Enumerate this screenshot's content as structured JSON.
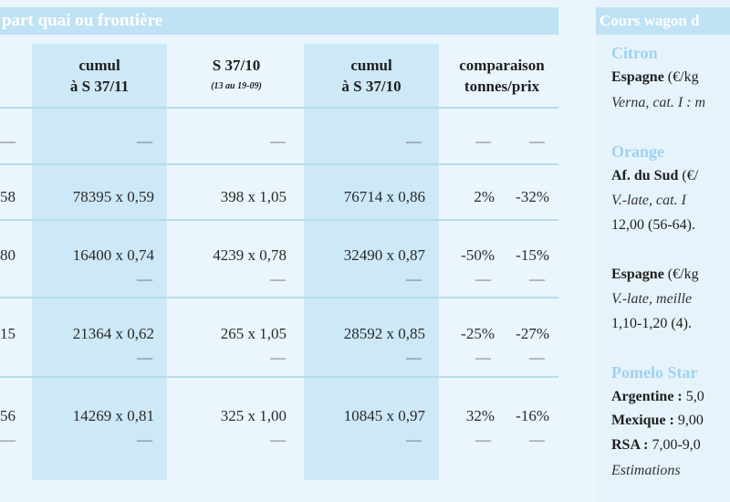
{
  "left_table": {
    "title": "part quai ou frontière",
    "headers": {
      "col0_fragment": "",
      "col1_line1": "cumul",
      "col1_line2": "à S 37/11",
      "col2_line1": "S 37/10",
      "col2_sub": "(13 au 19-09)",
      "col3_line1": "cumul",
      "col3_line2": "à S 37/10",
      "col4_line1": "comparaison",
      "col4_line2": "tonnes/prix"
    },
    "rows": [
      {
        "c0": "—",
        "c1": "—",
        "c2": "—",
        "c3": "—",
        "c4a": "—",
        "c4b": "—",
        "has_dash_line": false
      },
      {
        "c0": "58",
        "c1": "78395 x 0,59",
        "c2": "398 x 1,05",
        "c3": "76714 x 0,86",
        "c4a": "2%",
        "c4b": "-32%",
        "has_dash_line": false
      },
      {
        "c0": "80",
        "c1": "16400 x 0,74",
        "c2": "4239 x 0,78",
        "c3": "32490 x 0,87",
        "c4a": "-50%",
        "c4b": "-15%",
        "has_dash_line": true
      },
      {
        "c0": "15",
        "c1": "21364 x 0,62",
        "c2": "265 x 1,05",
        "c3": "28592 x 0,85",
        "c4a": "-25%",
        "c4b": "-27%",
        "has_dash_line": true
      },
      {
        "c0": "56",
        "c1": "14269 x 0,81",
        "c2": "325 x 1,00",
        "c3": "10845 x 0,97",
        "c4a": "32%",
        "c4b": "-16%",
        "has_dash_line": true
      }
    ]
  },
  "right_panel": {
    "title": "Cours wagon d",
    "citron_head": "Citron",
    "citron_line1_bold": "Espagne",
    "citron_line1_rest": " (€/kg",
    "citron_line2": "Verna, cat. I : m",
    "orange_head": "Orange",
    "orange_line1_bold": "Af. du Sud",
    "orange_line1_rest": " (€/",
    "orange_line2": "V.-late,   cat. I",
    "orange_line3": "12,00 (56-64).",
    "esp2_line1_bold": "Espagne",
    "esp2_line1_rest": " (€/kg",
    "esp2_line2": "V.-late,   meille",
    "esp2_line3": "1,10-1,20 (4).",
    "pomelo_head": "Pomelo Star",
    "arg_bold": "Argentine :",
    "arg_rest": " 5,0",
    "mex_bold": "Mexique :",
    "mex_rest": " 9,00",
    "rsa_bold": "RSA :",
    "rsa_rest": " 7,00-9,0",
    "estim": "Estimations"
  },
  "colors": {
    "title_bar": "#bfe2f4",
    "title_text": "#ffffff",
    "shade": "#cde8f6",
    "right_head": "#9fd2ee",
    "rule": "#b5dcef"
  }
}
